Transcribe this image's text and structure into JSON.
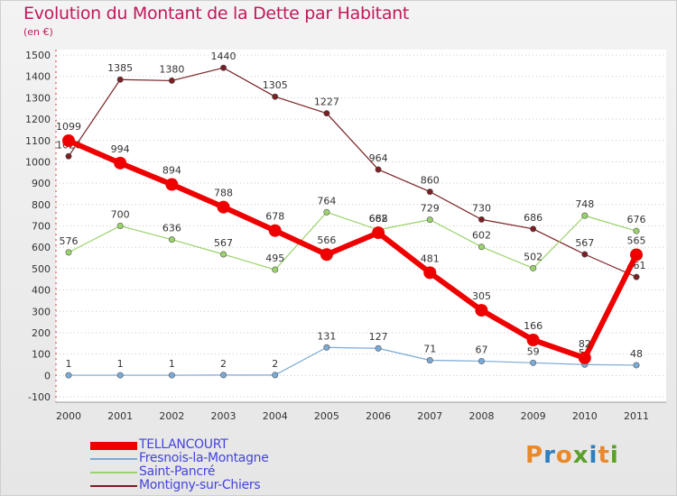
{
  "header": {
    "title": "Evolution du Montant de la Dette par Habitant",
    "subtitle": "(en €)"
  },
  "logo": {
    "text": "Proxiti",
    "colors": [
      "#e8892c",
      "#2f7fc0",
      "#e8892c",
      "#5aa02c",
      "#2f7fc0",
      "#e8892c",
      "#5aa02c"
    ]
  },
  "chart_data": {
    "type": "line",
    "title": "Evolution du Montant de la Dette par Habitant",
    "subtitle": "(en €)",
    "xlabel": "",
    "ylabel": "",
    "x": [
      "2000",
      "2001",
      "2002",
      "2003",
      "2004",
      "2005",
      "2006",
      "2007",
      "2008",
      "2009",
      "2010",
      "2011"
    ],
    "ylim": [
      -100,
      1500
    ],
    "yticks": [
      -100,
      0,
      100,
      200,
      300,
      400,
      500,
      600,
      700,
      800,
      900,
      1000,
      1100,
      1200,
      1300,
      1400,
      1500
    ],
    "grid": "horizontal dotted",
    "legend_position": "bottom-left",
    "series": [
      {
        "name": "Montigny-sur-Chiers",
        "color": "#7a1f24",
        "width": 1.2,
        "values": [
          1026,
          1385,
          1380,
          1440,
          1305,
          1227,
          964,
          860,
          730,
          686,
          567,
          461
        ]
      },
      {
        "name": "Saint-Pancré",
        "color": "#9ad36b",
        "width": 1.2,
        "values": [
          576,
          700,
          636,
          567,
          495,
          764,
          682,
          729,
          602,
          502,
          748,
          676
        ]
      },
      {
        "name": "Fresnois-la-Montagne",
        "color": "#7aaad6",
        "width": 1.2,
        "values": [
          1,
          1,
          1,
          2,
          2,
          131,
          127,
          71,
          67,
          59,
          51,
          48
        ]
      },
      {
        "name": "TELLANCOURT",
        "color": "#ee0000",
        "width": 6,
        "values": [
          1099,
          994,
          894,
          788,
          678,
          566,
          668,
          481,
          305,
          166,
          82,
          565
        ]
      }
    ]
  },
  "legend": [
    {
      "label": "TELLANCOURT",
      "color": "#ee0000",
      "thickness": 9
    },
    {
      "label": "Fresnois-la-Montagne",
      "color": "#7aaad6",
      "thickness": 2
    },
    {
      "label": "Saint-Pancré",
      "color": "#9ad36b",
      "thickness": 2
    },
    {
      "label": "Montigny-sur-Chiers",
      "color": "#7a1f24",
      "thickness": 2
    }
  ]
}
